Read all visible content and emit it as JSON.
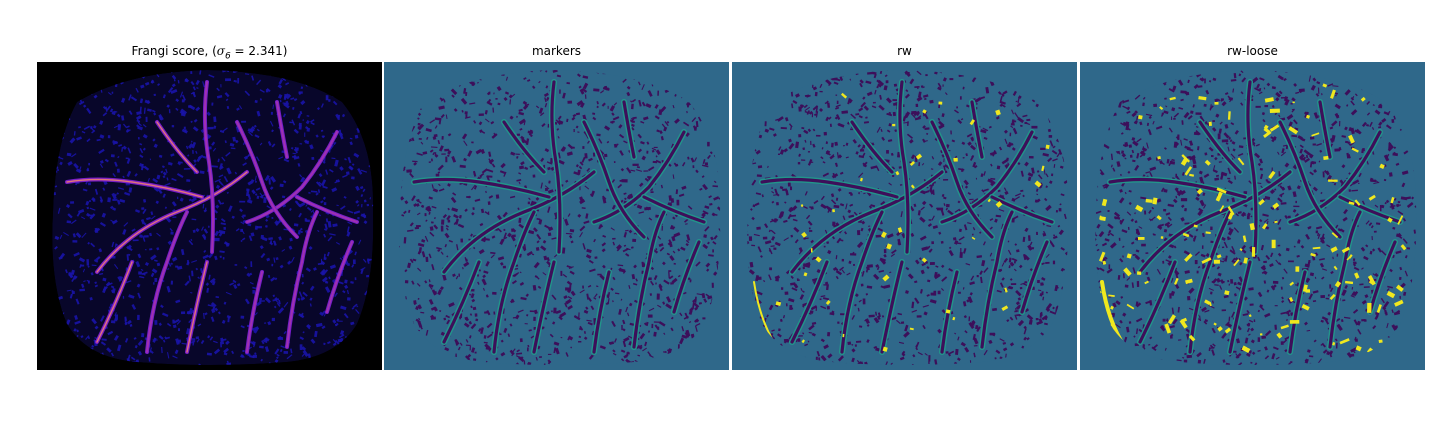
{
  "panels": [
    {
      "id": "frangi",
      "title": "Frangi score, (σ₆ = 2.341)",
      "title_prefix": "Frangi score, (",
      "title_symbol": "σ",
      "title_subscript": "6",
      "title_suffix": " = 2.341)",
      "colormap": "magma",
      "background_color": "#000000",
      "texture_color": "#1a14a8",
      "vessel_colors": [
        "#3b1fb8",
        "#7a1fd0",
        "#b23aa8",
        "#f08a6a"
      ]
    },
    {
      "id": "markers",
      "title": "markers",
      "colormap": "viridis",
      "background_color": "#2f688a",
      "texture_color": "#3d0f5a",
      "vessel_colors": [
        "#3d0f5a",
        "#22958a"
      ]
    },
    {
      "id": "rw",
      "title": "rw",
      "colormap": "viridis",
      "background_color": "#2f688a",
      "texture_color": "#3d0f5a",
      "vessel_colors": [
        "#3d0f5a",
        "#22958a",
        "#f0e81e"
      ]
    },
    {
      "id": "rw-loose",
      "title": "rw-loose",
      "colormap": "viridis",
      "background_color": "#2f688a",
      "texture_color": "#3d0f5a",
      "vessel_colors": [
        "#3d0f5a",
        "#22958a",
        "#f0e81e"
      ]
    }
  ]
}
